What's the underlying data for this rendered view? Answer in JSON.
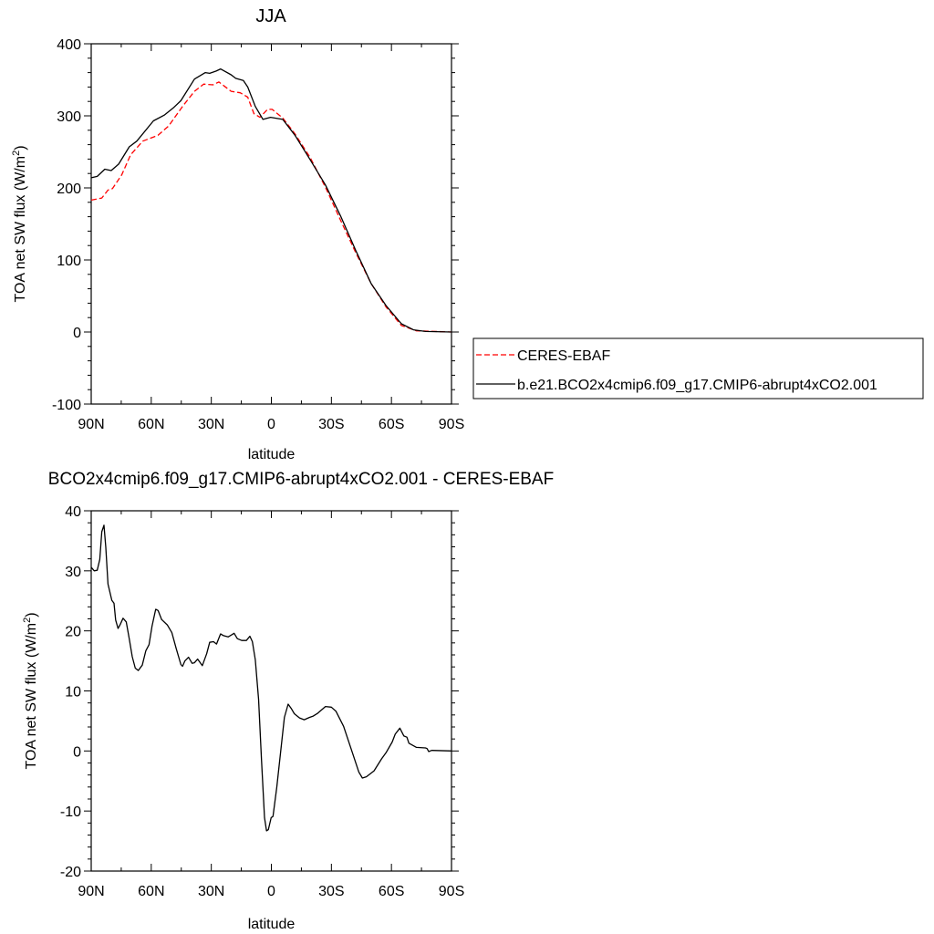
{
  "chart_data": [
    {
      "type": "line",
      "title": "JJA",
      "xlabel": "latitude",
      "ylabel": "TOA net SW flux (W/m",
      "ylabel_sup": "2",
      "ylabel_end": ")",
      "xlim": [
        90,
        -90
      ],
      "ylim": [
        -100,
        400
      ],
      "xticks": [
        90,
        60,
        30,
        0,
        -30,
        -60,
        -90
      ],
      "xtick_labels": [
        "90N",
        "60N",
        "30N",
        "0",
        "30S",
        "60S",
        "90S"
      ],
      "yticks": [
        400,
        300,
        200,
        100,
        0,
        -100
      ],
      "ytick_labels": [
        "400",
        "300",
        "200",
        "100",
        "0",
        "-100"
      ],
      "grid": false,
      "legend_position": "right-outside",
      "series": [
        {
          "name": "CERES-EBAF",
          "color": "#ff0000",
          "style": "dashed",
          "x": [
            90,
            84.7,
            81.6,
            79.4,
            74.8,
            70.3,
            64.2,
            56.6,
            51.3,
            44.4,
            38.4,
            33.8,
            29.2,
            26.2,
            20.1,
            15.6,
            11.8,
            8.7,
            5.7,
            1.9,
            -0.4,
            -5.7,
            -11.8,
            -19.4,
            -27,
            -34.6,
            -42.2,
            -49.8,
            -57.3,
            -65,
            -72.5,
            -90
          ],
          "y": [
            183,
            186,
            197,
            199,
            218,
            246,
            265,
            273,
            286,
            313,
            334,
            344,
            343,
            347,
            334,
            332,
            326,
            303,
            298,
            309,
            309,
            297,
            275,
            242,
            201,
            155,
            110,
            67.5,
            35,
            9,
            1.7,
            0
          ]
        },
        {
          "name": "b.e21.BCO2x4cmip6.f09_g17.CMIP6-abrupt4xCO2.001",
          "color": "#000000",
          "style": "solid",
          "x": [
            90,
            87,
            83.2,
            80,
            76.3,
            71,
            67.2,
            58.9,
            53.5,
            49,
            45.2,
            38.4,
            33,
            30.8,
            27.7,
            25.4,
            20.1,
            17.8,
            14,
            11.8,
            8,
            4.2,
            0.4,
            -5.7,
            -11.8,
            -19.4,
            -27,
            -34.6,
            -42.2,
            -49.8,
            -57.3,
            -65,
            -71,
            -77,
            -90
          ],
          "y": [
            214,
            216,
            226,
            224,
            233,
            257,
            265,
            293,
            301,
            311,
            321,
            351,
            360,
            359,
            362,
            365,
            357,
            352,
            349,
            340,
            313,
            295,
            298,
            295,
            273,
            239,
            204,
            161,
            113,
            67.5,
            36.7,
            11.4,
            3,
            0.8,
            0
          ]
        }
      ]
    },
    {
      "type": "line",
      "title": "BCO2x4cmip6.f09_g17.CMIP6-abrupt4xCO2.001 - CERES-EBAF",
      "xlabel": "latitude",
      "ylabel": "TOA net SW flux (W/m",
      "ylabel_sup": "2",
      "ylabel_end": ")",
      "xlim": [
        90,
        -90
      ],
      "ylim": [
        -20,
        40
      ],
      "xticks": [
        90,
        60,
        30,
        0,
        -30,
        -60,
        -90
      ],
      "xtick_labels": [
        "90N",
        "60N",
        "30N",
        "0",
        "30S",
        "60S",
        "90S"
      ],
      "yticks": [
        40,
        30,
        20,
        10,
        0,
        -10,
        -20
      ],
      "ytick_labels": [
        "40",
        "30",
        "20",
        "10",
        "0",
        "-10",
        "-20"
      ],
      "grid": false,
      "series": [
        {
          "color": "#000000",
          "style": "solid",
          "x": [
            90,
            88.5,
            87,
            85.7,
            84.7,
            83.6,
            82.7,
            81.6,
            79.7,
            78.6,
            77.8,
            76.6,
            75.6,
            74.1,
            72.5,
            71,
            69.5,
            68,
            66.5,
            64.5,
            62.7,
            61.1,
            59.6,
            57.8,
            56.6,
            54.8,
            52,
            49.7,
            47.5,
            45.2,
            44.4,
            43.2,
            41.4,
            39.6,
            38.4,
            36.8,
            34.5,
            32.3,
            30.8,
            28.9,
            27.4,
            25.4,
            23.9,
            21.6,
            18.6,
            17,
            14.8,
            12.5,
            10.7,
            9.5,
            8,
            6.4,
            4.9,
            3.4,
            2.4,
            1.5,
            0.1,
            -0.8,
            -2.7,
            -5,
            -6.5,
            -8.4,
            -9.9,
            -11.5,
            -14.1,
            -16.4,
            -19.1,
            -20.9,
            -23.2,
            -27,
            -30,
            -32.3,
            -36.1,
            -40.7,
            -43.7,
            -45.5,
            -47.5,
            -51.3,
            -55.1,
            -57.3,
            -60.4,
            -61.9,
            -64.2,
            -66.2,
            -67.7,
            -68.7,
            -72.5,
            -77,
            -77.8,
            -78.6,
            -80.1,
            -90
          ],
          "y": [
            30.6,
            30,
            30.1,
            31.9,
            36.5,
            37.6,
            33.9,
            27.8,
            25.1,
            24.6,
            21.8,
            20.4,
            21,
            22.1,
            21.5,
            18.7,
            15.7,
            13.8,
            13.4,
            14.3,
            16.7,
            17.7,
            20.8,
            23.6,
            23.4,
            21.9,
            21,
            19.7,
            17,
            14.4,
            14.1,
            15,
            15.6,
            14.6,
            14.7,
            15.3,
            14.2,
            16.2,
            18.1,
            18.2,
            17.8,
            19.5,
            19.2,
            19,
            19.6,
            18.7,
            18.4,
            18.4,
            19.1,
            18.2,
            15.2,
            8.6,
            -1.5,
            -11.1,
            -13.3,
            -13.1,
            -11.1,
            -10.9,
            -6.1,
            1,
            5.6,
            7.8,
            7.1,
            6.2,
            5.5,
            5.2,
            5.6,
            5.8,
            6.3,
            7.4,
            7.3,
            6.6,
            4.1,
            -0.5,
            -3.5,
            -4.5,
            -4.3,
            -3.3,
            -1.3,
            -0.3,
            1.5,
            2.8,
            3.8,
            2.5,
            2.3,
            1.3,
            0.6,
            0.5,
            0.4,
            -0.1,
            0.1,
            0
          ]
        }
      ]
    }
  ]
}
